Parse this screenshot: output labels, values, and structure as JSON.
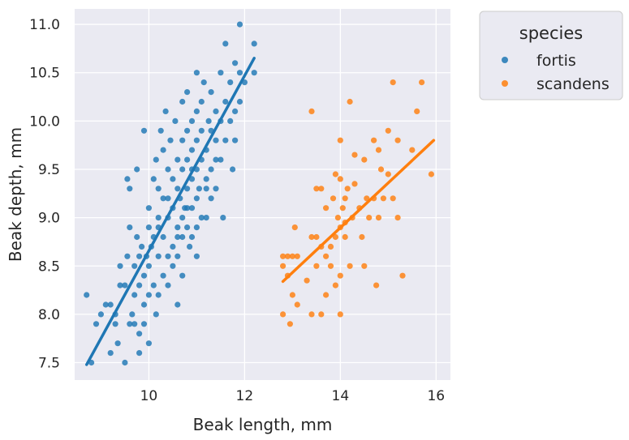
{
  "chart_data": {
    "type": "scatter",
    "xlabel": "Beak length, mm",
    "ylabel": "Beak depth, mm",
    "xlim": [
      8.45,
      16.3
    ],
    "ylim": [
      7.32,
      11.16
    ],
    "x_ticks": [
      "10",
      "12",
      "14",
      "16"
    ],
    "x_tick_values": [
      10,
      12,
      14,
      16
    ],
    "y_ticks": [
      "7.5",
      "8.0",
      "8.5",
      "9.0",
      "9.5",
      "10.0",
      "10.5",
      "11.0"
    ],
    "y_tick_values": [
      7.5,
      8.0,
      8.5,
      9.0,
      9.5,
      10.0,
      10.5,
      11.0
    ],
    "grid": true,
    "background": "#eaeaf2",
    "legend": {
      "title": "species",
      "placement": "outside-top-right"
    },
    "series": [
      {
        "name": "fortis",
        "color": "#1f77b4",
        "fit_line": {
          "x": [
            8.7,
            12.2
          ],
          "y": [
            7.48,
            10.65
          ]
        },
        "points": [
          [
            8.7,
            8.2
          ],
          [
            8.8,
            7.5
          ],
          [
            8.9,
            7.9
          ],
          [
            9.0,
            8.0
          ],
          [
            9.1,
            8.1
          ],
          [
            9.2,
            8.1
          ],
          [
            9.2,
            7.6
          ],
          [
            9.3,
            7.9
          ],
          [
            9.3,
            8.0
          ],
          [
            9.35,
            7.7
          ],
          [
            9.4,
            8.3
          ],
          [
            9.4,
            8.5
          ],
          [
            9.5,
            8.3
          ],
          [
            9.5,
            7.5
          ],
          [
            9.55,
            8.6
          ],
          [
            9.55,
            9.4
          ],
          [
            9.6,
            8.9
          ],
          [
            9.6,
            9.3
          ],
          [
            9.6,
            7.9
          ],
          [
            9.65,
            8.0
          ],
          [
            9.7,
            8.5
          ],
          [
            9.7,
            8.2
          ],
          [
            9.7,
            7.9
          ],
          [
            9.75,
            8.8
          ],
          [
            9.75,
            9.5
          ],
          [
            9.8,
            8.6
          ],
          [
            9.8,
            8.3
          ],
          [
            9.8,
            7.8
          ],
          [
            9.8,
            7.6
          ],
          [
            9.85,
            8.7
          ],
          [
            9.9,
            9.9
          ],
          [
            9.9,
            8.4
          ],
          [
            9.9,
            8.1
          ],
          [
            9.9,
            7.9
          ],
          [
            9.95,
            8.6
          ],
          [
            10.0,
            8.9
          ],
          [
            10.0,
            9.1
          ],
          [
            10.0,
            8.5
          ],
          [
            10.0,
            8.2
          ],
          [
            10.0,
            7.7
          ],
          [
            10.05,
            8.7
          ],
          [
            10.1,
            9.4
          ],
          [
            10.1,
            8.8
          ],
          [
            10.1,
            8.3
          ],
          [
            10.15,
            9.6
          ],
          [
            10.15,
            8.0
          ],
          [
            10.2,
            9.3
          ],
          [
            10.2,
            8.9
          ],
          [
            10.2,
            8.6
          ],
          [
            10.2,
            8.2
          ],
          [
            10.25,
            9.9
          ],
          [
            10.3,
            9.7
          ],
          [
            10.3,
            9.2
          ],
          [
            10.3,
            8.8
          ],
          [
            10.3,
            8.4
          ],
          [
            10.35,
            10.1
          ],
          [
            10.4,
            9.5
          ],
          [
            10.4,
            9.0
          ],
          [
            10.4,
            8.6
          ],
          [
            10.4,
            8.3
          ],
          [
            10.45,
            9.8
          ],
          [
            10.5,
            9.4
          ],
          [
            10.5,
            9.1
          ],
          [
            10.5,
            8.7
          ],
          [
            10.5,
            8.5
          ],
          [
            10.55,
            10.0
          ],
          [
            10.6,
            9.6
          ],
          [
            10.6,
            9.3
          ],
          [
            10.6,
            8.9
          ],
          [
            10.6,
            8.6
          ],
          [
            10.6,
            8.1
          ],
          [
            10.65,
            9.2
          ],
          [
            10.7,
            10.2
          ],
          [
            10.7,
            9.8
          ],
          [
            10.7,
            9.5
          ],
          [
            10.7,
            9.0
          ],
          [
            10.7,
            8.8
          ],
          [
            10.7,
            8.4
          ],
          [
            10.75,
            9.1
          ],
          [
            10.8,
            10.3
          ],
          [
            10.8,
            9.9
          ],
          [
            10.8,
            9.6
          ],
          [
            10.8,
            9.3
          ],
          [
            10.8,
            8.9
          ],
          [
            10.85,
            8.7
          ],
          [
            10.9,
            10.0
          ],
          [
            10.9,
            9.7
          ],
          [
            10.9,
            9.4
          ],
          [
            10.9,
            9.1
          ],
          [
            10.9,
            8.8
          ],
          [
            11.0,
            10.5
          ],
          [
            11.0,
            10.1
          ],
          [
            11.0,
            9.8
          ],
          [
            11.0,
            9.5
          ],
          [
            11.0,
            9.2
          ],
          [
            11.0,
            8.9
          ],
          [
            11.05,
            9.3
          ],
          [
            11.1,
            10.2
          ],
          [
            11.1,
            9.9
          ],
          [
            11.1,
            9.6
          ],
          [
            11.1,
            9.0
          ],
          [
            11.15,
            10.4
          ],
          [
            11.2,
            9.7
          ],
          [
            11.2,
            9.4
          ],
          [
            11.2,
            9.0
          ],
          [
            11.25,
            10.0
          ],
          [
            11.3,
            10.3
          ],
          [
            11.3,
            9.9
          ],
          [
            11.3,
            9.5
          ],
          [
            11.3,
            9.2
          ],
          [
            11.4,
            10.1
          ],
          [
            11.4,
            9.8
          ],
          [
            11.4,
            9.3
          ],
          [
            11.5,
            10.5
          ],
          [
            11.5,
            10.0
          ],
          [
            11.5,
            9.6
          ],
          [
            11.55,
            9.0
          ],
          [
            11.6,
            10.8
          ],
          [
            11.6,
            10.2
          ],
          [
            11.6,
            9.8
          ],
          [
            11.7,
            10.4
          ],
          [
            11.7,
            10.0
          ],
          [
            11.75,
            9.5
          ],
          [
            11.8,
            10.6
          ],
          [
            11.8,
            10.1
          ],
          [
            11.8,
            9.8
          ],
          [
            11.9,
            11.0
          ],
          [
            11.9,
            10.5
          ],
          [
            11.9,
            10.2
          ],
          [
            12.0,
            10.4
          ],
          [
            12.2,
            10.8
          ],
          [
            12.2,
            10.5
          ],
          [
            11.0,
            8.6
          ],
          [
            10.6,
            8.8
          ],
          [
            10.2,
            9.0
          ],
          [
            10.8,
            9.1
          ],
          [
            11.2,
            9.3
          ],
          [
            10.4,
            9.2
          ],
          [
            11.4,
            9.6
          ],
          [
            10.9,
            9.5
          ]
        ]
      },
      {
        "name": "scandens",
        "color": "#ff7f0e",
        "fit_line": {
          "x": [
            12.8,
            15.95
          ],
          "y": [
            8.34,
            9.8
          ]
        },
        "points": [
          [
            12.8,
            8.6
          ],
          [
            12.8,
            8.5
          ],
          [
            12.8,
            8.0
          ],
          [
            12.9,
            8.6
          ],
          [
            12.9,
            8.4
          ],
          [
            12.95,
            7.9
          ],
          [
            13.0,
            8.6
          ],
          [
            13.0,
            8.2
          ],
          [
            13.05,
            8.9
          ],
          [
            13.1,
            8.6
          ],
          [
            13.1,
            8.1
          ],
          [
            13.3,
            8.35
          ],
          [
            13.4,
            8.0
          ],
          [
            13.4,
            10.1
          ],
          [
            13.4,
            8.8
          ],
          [
            13.5,
            9.3
          ],
          [
            13.5,
            8.5
          ],
          [
            13.6,
            9.3
          ],
          [
            13.6,
            8.7
          ],
          [
            13.6,
            8.0
          ],
          [
            13.7,
            9.1
          ],
          [
            13.7,
            8.6
          ],
          [
            13.7,
            8.2
          ],
          [
            13.8,
            8.5
          ],
          [
            13.8,
            8.7
          ],
          [
            13.85,
            9.2
          ],
          [
            13.9,
            8.8
          ],
          [
            13.9,
            8.3
          ],
          [
            13.95,
            9.0
          ],
          [
            14.0,
            9.8
          ],
          [
            14.0,
            9.4
          ],
          [
            14.0,
            8.9
          ],
          [
            14.0,
            8.4
          ],
          [
            14.0,
            8.0
          ],
          [
            14.05,
            9.1
          ],
          [
            14.1,
            8.8
          ],
          [
            14.1,
            9.2
          ],
          [
            14.15,
            9.3
          ],
          [
            14.2,
            10.2
          ],
          [
            14.2,
            8.5
          ],
          [
            14.25,
            9.0
          ],
          [
            14.3,
            9.65
          ],
          [
            14.4,
            9.1
          ],
          [
            14.45,
            8.8
          ],
          [
            14.5,
            9.6
          ],
          [
            14.5,
            8.5
          ],
          [
            14.55,
            9.2
          ],
          [
            14.6,
            9.0
          ],
          [
            14.7,
            9.8
          ],
          [
            14.7,
            9.2
          ],
          [
            14.75,
            8.3
          ],
          [
            14.8,
            9.7
          ],
          [
            14.8,
            9.0
          ],
          [
            14.85,
            9.5
          ],
          [
            14.9,
            9.2
          ],
          [
            15.0,
            9.9
          ],
          [
            15.0,
            9.45
          ],
          [
            15.1,
            10.4
          ],
          [
            15.1,
            9.2
          ],
          [
            15.2,
            9.0
          ],
          [
            15.3,
            8.4
          ],
          [
            15.5,
            9.7
          ],
          [
            15.6,
            10.1
          ],
          [
            15.7,
            10.4
          ],
          [
            15.9,
            9.45
          ],
          [
            14.1,
            8.95
          ],
          [
            13.9,
            9.45
          ],
          [
            14.3,
            9.35
          ],
          [
            15.2,
            9.8
          ],
          [
            13.5,
            8.8
          ]
        ]
      }
    ]
  }
}
